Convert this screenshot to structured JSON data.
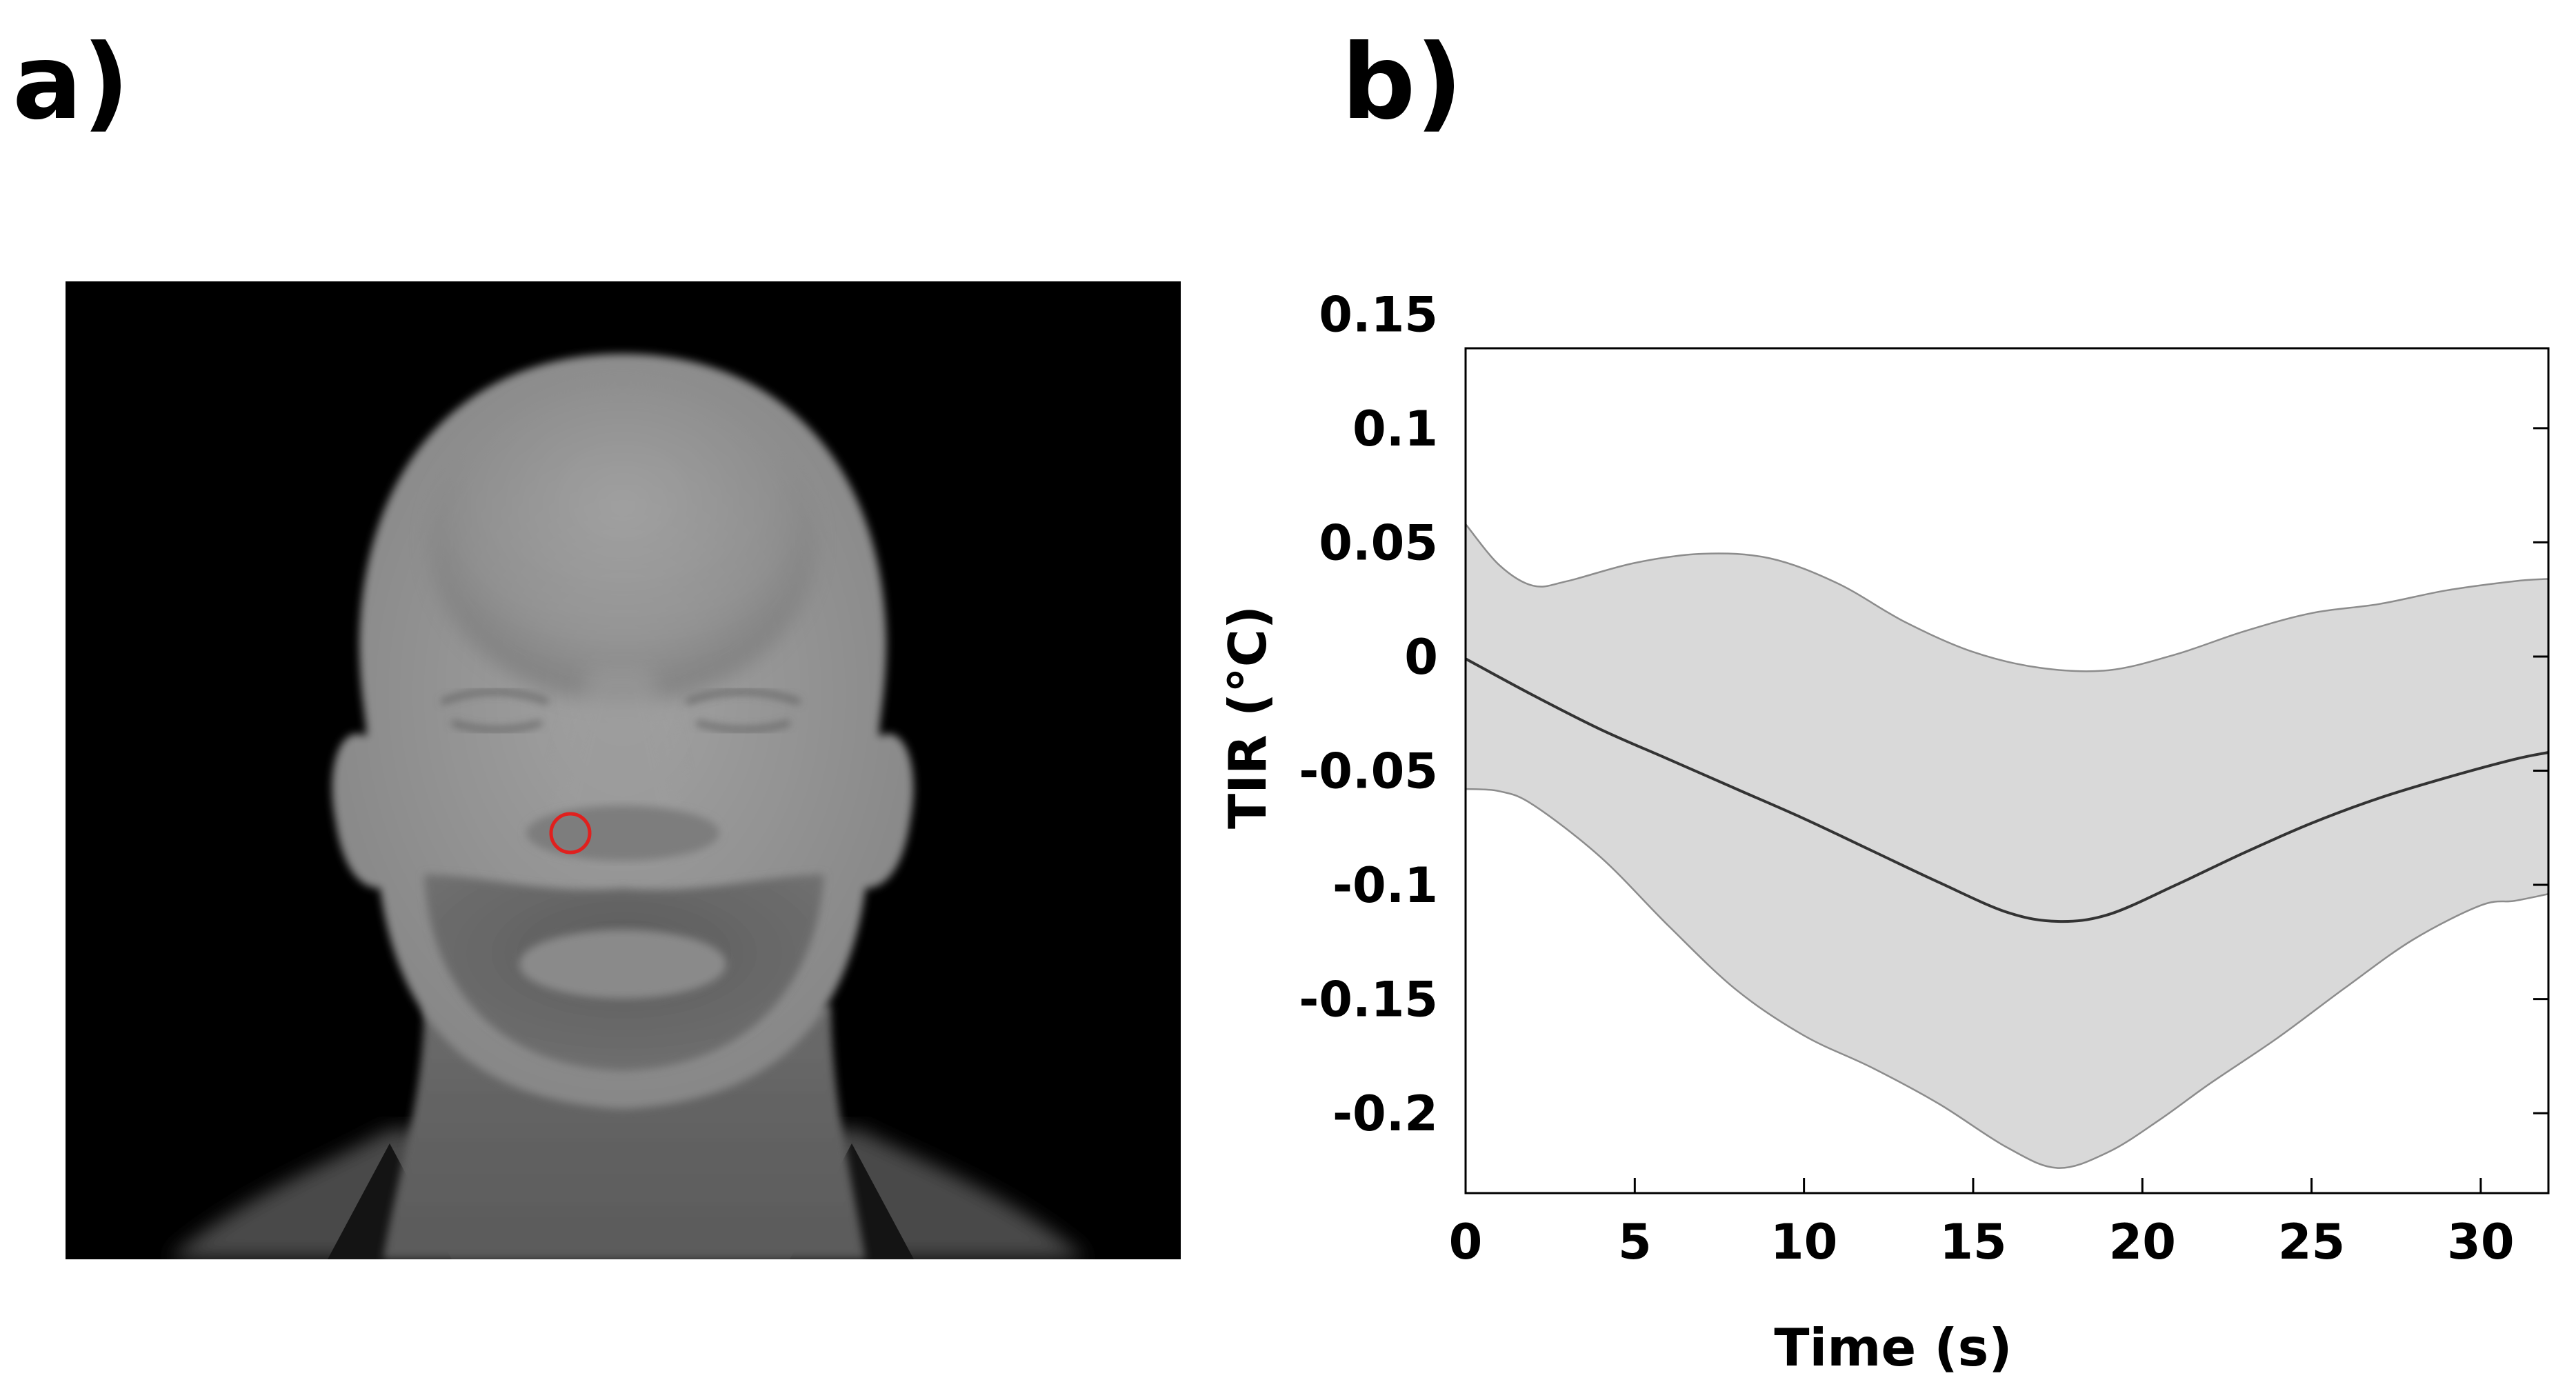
{
  "panels": {
    "a_label": "a)",
    "b_label": "b)"
  },
  "image_panel": {
    "content": "thermal-face-grayscale",
    "roi_marker_color": "#e0201e"
  },
  "chart_data": {
    "type": "line",
    "title": "",
    "xlabel": "Time (s)",
    "ylabel": "TIR (°C)",
    "xlim": [
      0,
      32
    ],
    "ylim": [
      -0.235,
      0.135
    ],
    "xticks": [
      0,
      5,
      10,
      15,
      20,
      25,
      30
    ],
    "xtick_labels": [
      "0",
      "5",
      "10",
      "15",
      "20",
      "25",
      "30"
    ],
    "yticks": [
      0.15,
      0.1,
      0.05,
      0,
      -0.05,
      -0.1,
      -0.15,
      -0.2
    ],
    "ytick_labels": [
      "0.15",
      "0.1",
      "0.05",
      "0",
      "-0.05",
      "-0.1",
      "-0.15",
      "-0.2"
    ],
    "grid": false,
    "legend": "none",
    "line_color": "#333333",
    "band_color": "#d9d9d9",
    "band_edge_color": "#8c8c8c",
    "series": [
      {
        "role": "mean",
        "x": [
          0,
          2,
          4,
          6,
          8,
          10,
          12,
          14,
          16,
          17.5,
          19,
          21,
          23,
          25,
          27,
          29,
          31,
          32
        ],
        "y": [
          -0.001,
          -0.017,
          -0.032,
          -0.045,
          -0.058,
          -0.071,
          -0.085,
          -0.099,
          -0.112,
          -0.116,
          -0.113,
          -0.1,
          -0.086,
          -0.073,
          -0.062,
          -0.053,
          -0.045,
          -0.042
        ]
      },
      {
        "role": "upper",
        "x": [
          0,
          1,
          2,
          3,
          5,
          7,
          9,
          11,
          13,
          15,
          17,
          19,
          21,
          23,
          25,
          27,
          29,
          31,
          32
        ],
        "y": [
          0.058,
          0.04,
          0.031,
          0.033,
          0.041,
          0.045,
          0.043,
          0.032,
          0.015,
          0.002,
          -0.005,
          -0.006,
          0.001,
          0.011,
          0.019,
          0.023,
          0.029,
          0.033,
          0.034
        ]
      },
      {
        "role": "lower",
        "x": [
          0,
          1,
          2,
          4,
          6,
          8,
          10,
          12,
          14,
          16,
          17.5,
          19,
          20.5,
          22,
          24,
          26,
          28,
          30,
          31,
          32
        ],
        "y": [
          -0.058,
          -0.059,
          -0.065,
          -0.088,
          -0.118,
          -0.146,
          -0.166,
          -0.18,
          -0.196,
          -0.215,
          -0.224,
          -0.217,
          -0.203,
          -0.187,
          -0.167,
          -0.145,
          -0.124,
          -0.109,
          -0.107,
          -0.104
        ]
      }
    ]
  }
}
